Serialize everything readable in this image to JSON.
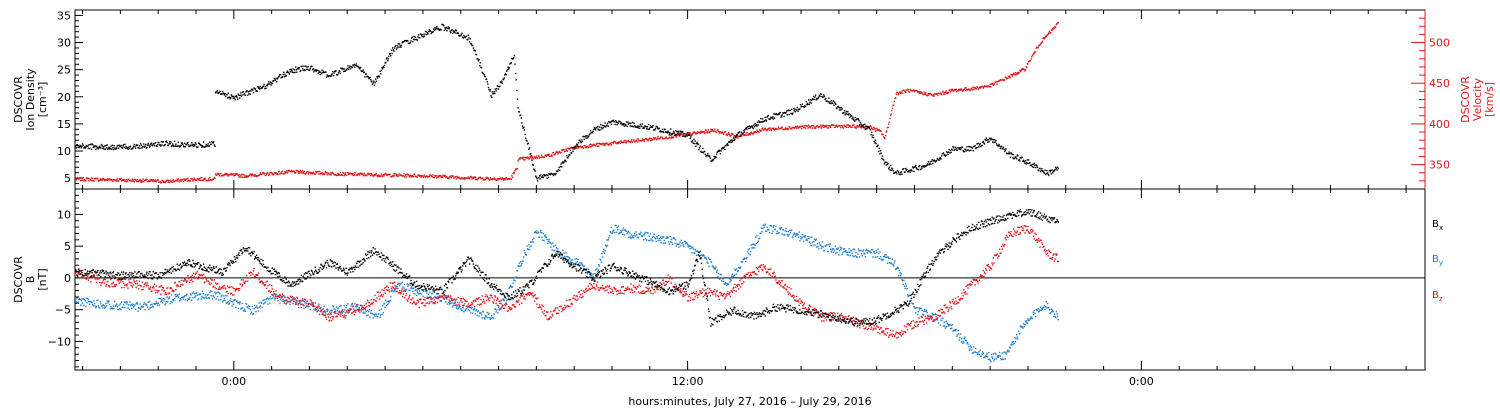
{
  "colors": {
    "black": "#000000",
    "red": "#e0191c",
    "blue": "#1f7fd1"
  },
  "xaxis": {
    "title": "hours:minutes, July 27, 2016 – July 29, 2016",
    "range_hours": [
      -4.2,
      31.5
    ],
    "tick_labels": [
      {
        "label": "0:00",
        "hour": 0
      },
      {
        "label": "12:00",
        "hour": 12
      },
      {
        "label": "0:00",
        "hour": 24
      }
    ]
  },
  "chart_data": [
    {
      "type": "scatter",
      "panel": "plasma",
      "ylabel_left": [
        "DSCOVR",
        "Ion Density",
        "[cm⁻³]"
      ],
      "ylabel_right": [
        "DSCOVR",
        "Velocity",
        "[km/s]"
      ],
      "ylim_left": [
        3,
        36
      ],
      "yticks_left": [
        "5",
        "10",
        "15",
        "20",
        "25",
        "30",
        "35"
      ],
      "ylim_right": [
        320,
        540
      ],
      "yticks_right": [
        "350",
        "400",
        "450",
        "500"
      ],
      "series": [
        {
          "name": "Ion Density",
          "axis": "left",
          "color": "black",
          "x": [
            -4.2,
            -3.0,
            -1.8,
            -1.1,
            -0.5,
            -0.5,
            0.0,
            0.8,
            1.5,
            2.0,
            2.5,
            3.2,
            3.7,
            4.2,
            4.8,
            5.5,
            6.2,
            6.5,
            6.8,
            7.1,
            7.4,
            7.5,
            8.0,
            8.5,
            9.0,
            9.5,
            10.0,
            11.0,
            12.0,
            12.6,
            13.3,
            14.0,
            14.8,
            15.5,
            16.2,
            16.8,
            17.2,
            17.5,
            18.3,
            19.0,
            19.5,
            20.0,
            20.5,
            21.0,
            21.5,
            21.8
          ],
          "values": [
            11,
            10.8,
            11.5,
            11.2,
            11.5,
            21,
            20,
            22,
            25,
            25.5,
            24,
            26,
            22.5,
            29,
            31,
            33,
            31,
            26,
            20.5,
            23,
            28,
            18,
            5,
            6,
            11,
            14,
            15.5,
            14.5,
            13,
            8.5,
            13,
            16,
            17.5,
            20.5,
            17,
            14,
            8,
            6,
            7.5,
            10.5,
            10.5,
            12.5,
            9.5,
            8,
            6,
            7
          ]
        },
        {
          "name": "Velocity",
          "axis": "right",
          "color": "red",
          "x": [
            -4.2,
            -3.0,
            -1.8,
            -1.0,
            -0.5,
            -0.5,
            0.3,
            1.5,
            3.0,
            5.0,
            6.5,
            7.3,
            7.5,
            7.5,
            8.3,
            9.0,
            10.0,
            11.0,
            12.0,
            12.7,
            13.3,
            14.0,
            15.0,
            16.0,
            16.8,
            17.1,
            17.2,
            17.5,
            17.8,
            18.5,
            19.0,
            19.5,
            20.0,
            20.5,
            20.9,
            21.3,
            21.8
          ],
          "values": [
            333,
            332,
            330,
            333,
            333,
            339,
            337,
            342,
            339,
            337,
            334,
            333,
            349,
            357,
            362,
            372,
            377,
            382,
            388,
            393,
            385,
            394,
            397,
            398,
            397,
            391,
            383,
            438,
            442,
            436,
            442,
            444,
            448,
            459,
            468,
            500,
            525
          ]
        }
      ]
    },
    {
      "type": "scatter",
      "panel": "magnetic",
      "ylabel": [
        "DSCOVR",
        "B",
        "[nT]"
      ],
      "ylim": [
        -14.5,
        14
      ],
      "yticks": [
        "10",
        "5",
        "0",
        "−5",
        "−10"
      ],
      "zero_line": true,
      "series": [
        {
          "name": "B",
          "sub": "x",
          "color": "black",
          "x": [
            -4.2,
            -3.0,
            -2.0,
            -1.2,
            -0.3,
            0.3,
            0.8,
            1.5,
            2.5,
            3.0,
            3.7,
            4.2,
            4.8,
            5.5,
            6.2,
            6.8,
            7.3,
            7.8,
            8.5,
            9.0,
            9.5,
            10.0,
            10.8,
            11.5,
            12.0,
            12.3,
            12.6,
            13.2,
            13.8,
            14.3,
            15.0,
            15.8,
            16.5,
            17.0,
            17.8,
            18.5,
            19.0,
            19.5,
            20.0,
            20.5,
            21.0,
            21.5,
            21.8
          ],
          "values": [
            1,
            0.5,
            0.5,
            2.5,
            1,
            5,
            2,
            -1,
            2.5,
            1,
            4.5,
            2,
            -1,
            -2,
            3,
            -1,
            -3,
            -1,
            4,
            2,
            0,
            2,
            0,
            -2,
            -1,
            4,
            -7,
            -5,
            -6,
            -4.5,
            -5,
            -6,
            -7,
            -6.5,
            -4,
            3,
            6,
            8,
            9,
            10,
            10.5,
            9.5,
            9
          ]
        },
        {
          "name": "B",
          "sub": "y",
          "color": "blue",
          "x": [
            -4.2,
            -3.5,
            -2.5,
            -1.5,
            -0.5,
            0.0,
            0.5,
            1.0,
            1.8,
            2.5,
            3.2,
            3.8,
            4.3,
            4.8,
            5.5,
            6.2,
            6.8,
            7.2,
            7.6,
            8.0,
            8.6,
            9.1,
            9.5,
            10.0,
            10.5,
            11.0,
            11.5,
            12.0,
            12.5,
            13.0,
            13.6,
            14.0,
            14.5,
            15.0,
            15.6,
            16.2,
            17.0,
            17.5,
            18.0,
            18.5,
            19.0,
            19.5,
            20.0,
            20.4,
            20.8,
            21.4,
            21.8
          ],
          "values": [
            -3.5,
            -4,
            -4.5,
            -3,
            -2.5,
            -4,
            -5,
            -3,
            -4,
            -5,
            -4.5,
            -6,
            -1,
            -2,
            -3,
            -5,
            -6,
            -3,
            3,
            7.5,
            4,
            2.5,
            0,
            8,
            7,
            6.5,
            6,
            5,
            3,
            -1,
            4,
            8,
            7.5,
            6.5,
            5,
            4,
            4,
            2,
            -5,
            -6,
            -8,
            -11,
            -12.5,
            -12,
            -8,
            -4,
            -6
          ]
        },
        {
          "name": "B",
          "sub": "z",
          "color": "red",
          "x": [
            -4.2,
            -3.5,
            -2.5,
            -1.8,
            -1.0,
            -0.5,
            0.0,
            0.5,
            1.2,
            2.0,
            2.5,
            3.0,
            3.5,
            4.2,
            4.8,
            5.5,
            6.2,
            6.8,
            7.3,
            7.8,
            8.3,
            8.8,
            9.5,
            10.0,
            10.5,
            11.0,
            11.5,
            12.0,
            12.5,
            13.0,
            13.5,
            14.0,
            14.5,
            15.0,
            15.5,
            16.0,
            16.5,
            17.0,
            17.5,
            18.0,
            18.5,
            19.0,
            19.5,
            20.0,
            20.5,
            21.0,
            21.5,
            21.8
          ],
          "values": [
            1,
            -0.5,
            -1,
            -2,
            0.5,
            -1,
            -2,
            1,
            -3,
            -4,
            -6,
            -5.5,
            -4,
            -1,
            -4,
            -3,
            -4,
            -3,
            -5,
            -2,
            -6,
            -4,
            -1,
            -2,
            -1.5,
            -2,
            0,
            -3,
            -2,
            -3,
            0,
            2,
            -1,
            -4,
            -6,
            -6,
            -7,
            -8,
            -9,
            -7,
            -6,
            -4,
            -1,
            2,
            7,
            8,
            4,
            3
          ]
        }
      ]
    }
  ]
}
